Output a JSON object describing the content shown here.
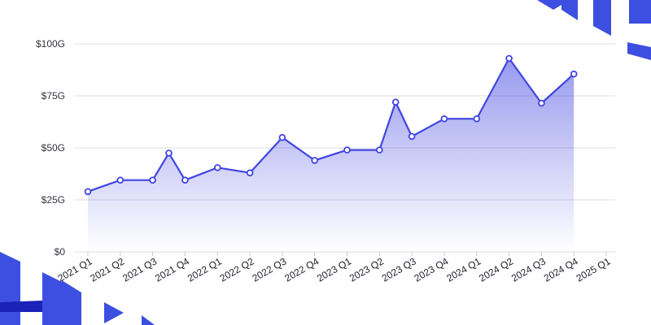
{
  "chart_data": {
    "type": "area",
    "title": "",
    "xlabel": "",
    "ylabel": "",
    "ylim": [
      0,
      100
    ],
    "y_ticks": [
      {
        "value": 0,
        "label": "$0"
      },
      {
        "value": 25,
        "label": "$25G"
      },
      {
        "value": 50,
        "label": "$50G"
      },
      {
        "value": 75,
        "label": "$75G"
      },
      {
        "value": 100,
        "label": "$100G"
      }
    ],
    "x_tick_labels": [
      "2021 Q1",
      "2021 Q2",
      "2021 Q3",
      "2021 Q4",
      "2022 Q1",
      "2022 Q2",
      "2022 Q3",
      "2022 Q4",
      "2023 Q1",
      "2023 Q2",
      "2023 Q3",
      "2023 Q4",
      "2024 Q1",
      "2024 Q2",
      "2024 Q3",
      "2024 Q4",
      "2025 Q1"
    ],
    "series": [
      {
        "color": "#4146e0",
        "points": [
          {
            "x": "2021 Q1",
            "y": 29
          },
          {
            "x": "2021 Q2",
            "y": 34.5
          },
          {
            "x": "2021 Q3",
            "y": 34.5
          },
          {
            "x": "2021 Q3",
            "y": 47.5
          },
          {
            "x": "2021 Q4",
            "y": 34.5
          },
          {
            "x": "2022 Q1",
            "y": 40.5
          },
          {
            "x": "2022 Q2",
            "y": 38
          },
          {
            "x": "2022 Q3",
            "y": 55
          },
          {
            "x": "2022 Q4",
            "y": 44
          },
          {
            "x": "2023 Q1",
            "y": 49
          },
          {
            "x": "2023 Q2",
            "y": 49
          },
          {
            "x": "2023 Q2",
            "y": 72
          },
          {
            "x": "2023 Q3",
            "y": 55.5
          },
          {
            "x": "2023 Q4",
            "y": 64
          },
          {
            "x": "2024 Q1",
            "y": 64
          },
          {
            "x": "2024 Q2",
            "y": 93
          },
          {
            "x": "2024 Q3",
            "y": 71.5
          },
          {
            "x": "2024 Q4",
            "y": 85.5
          }
        ]
      }
    ],
    "grid": true,
    "legend": "none"
  },
  "colors": {
    "accent": "#4146e0",
    "decor_primary": "#3d4fe0",
    "decor_dark": "#1b22b8"
  }
}
